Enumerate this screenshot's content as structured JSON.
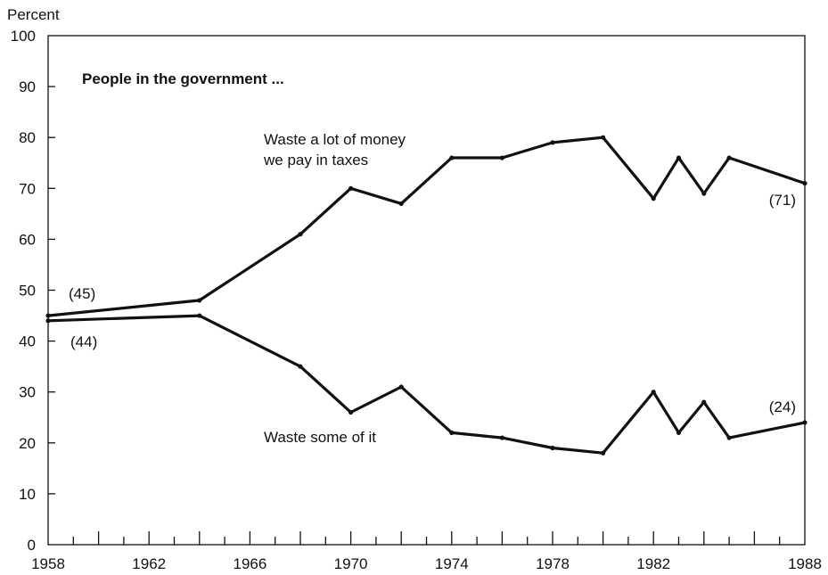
{
  "chart_data": {
    "type": "line",
    "ylabel": "Percent",
    "title": "People in the government ...",
    "xlim": [
      1958,
      1988
    ],
    "ylim": [
      0,
      100
    ],
    "x_ticks": [
      "1958",
      "1962",
      "1966",
      "1970",
      "1974",
      "1978",
      "1982",
      "1988"
    ],
    "y_ticks": [
      "0",
      "10",
      "20",
      "30",
      "40",
      "50",
      "60",
      "70",
      "80",
      "90",
      "100"
    ],
    "grid": false,
    "series": [
      {
        "name": "Waste a lot of money we pay in taxes",
        "name_lines": [
          "Waste a lot of money",
          "we pay in taxes"
        ],
        "x": [
          1958,
          1964,
          1968,
          1970,
          1972,
          1974,
          1976,
          1978,
          1980,
          1982,
          1983,
          1984,
          1985,
          1988
        ],
        "y": [
          45,
          48,
          61,
          70,
          67,
          76,
          76,
          79,
          80,
          68,
          76,
          69,
          76,
          71
        ]
      },
      {
        "name": "Waste some of it",
        "name_lines": [
          "Waste some of it"
        ],
        "x": [
          1958,
          1964,
          1968,
          1970,
          1972,
          1974,
          1976,
          1978,
          1980,
          1982,
          1983,
          1984,
          1985,
          1988
        ],
        "y": [
          44,
          45,
          35,
          26,
          31,
          22,
          21,
          19,
          18,
          30,
          22,
          28,
          21,
          24
        ]
      }
    ],
    "annotations": [
      "(45)",
      "(44)",
      "(71)",
      "(24)"
    ]
  }
}
